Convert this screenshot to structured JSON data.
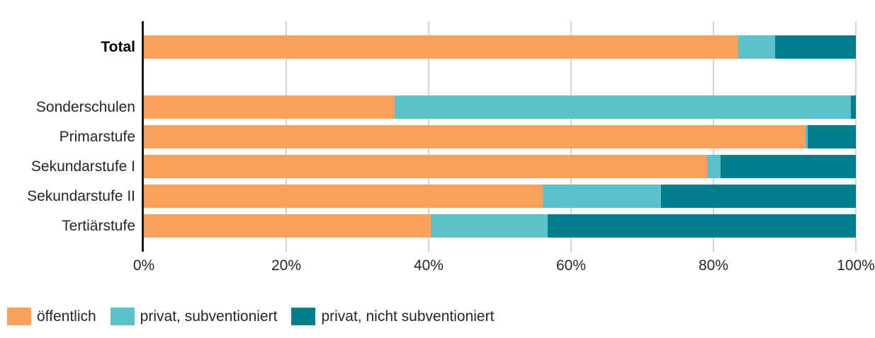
{
  "chart_data": {
    "type": "bar",
    "orientation": "horizontal",
    "stacked": true,
    "value_unit": "%",
    "categories": [
      "Total",
      "Sonderschulen",
      "Primarstufe",
      "Sekundarstufe I",
      "Sekundarstufe II",
      "Tertiärstufe"
    ],
    "emphasized_category": "Total",
    "series": [
      {
        "name": "öffentlich",
        "color": "#F9A05C",
        "values": [
          83.5,
          35.2,
          92.9,
          79.1,
          56.0,
          40.3
        ]
      },
      {
        "name": "privat, subventioniert",
        "color": "#5BC2CC",
        "values": [
          5.2,
          64.1,
          0.3,
          1.9,
          16.6,
          16.4
        ]
      },
      {
        "name": "privat, nicht subventioniert",
        "color": "#007E8C",
        "values": [
          11.3,
          0.7,
          6.8,
          19.0,
          27.4,
          43.3
        ]
      }
    ],
    "x_ticks": [
      "0%",
      "20%",
      "40%",
      "60%",
      "80%",
      "100%"
    ],
    "xlim": [
      0,
      100
    ],
    "gridlines": true,
    "legend_position": "bottom",
    "title": "",
    "xlabel": "",
    "ylabel": ""
  },
  "styles": {
    "background": "#ffffff",
    "axis_color": "#1a1a1a",
    "grid_color": "#d2d2d2",
    "text_color": "#262626"
  }
}
